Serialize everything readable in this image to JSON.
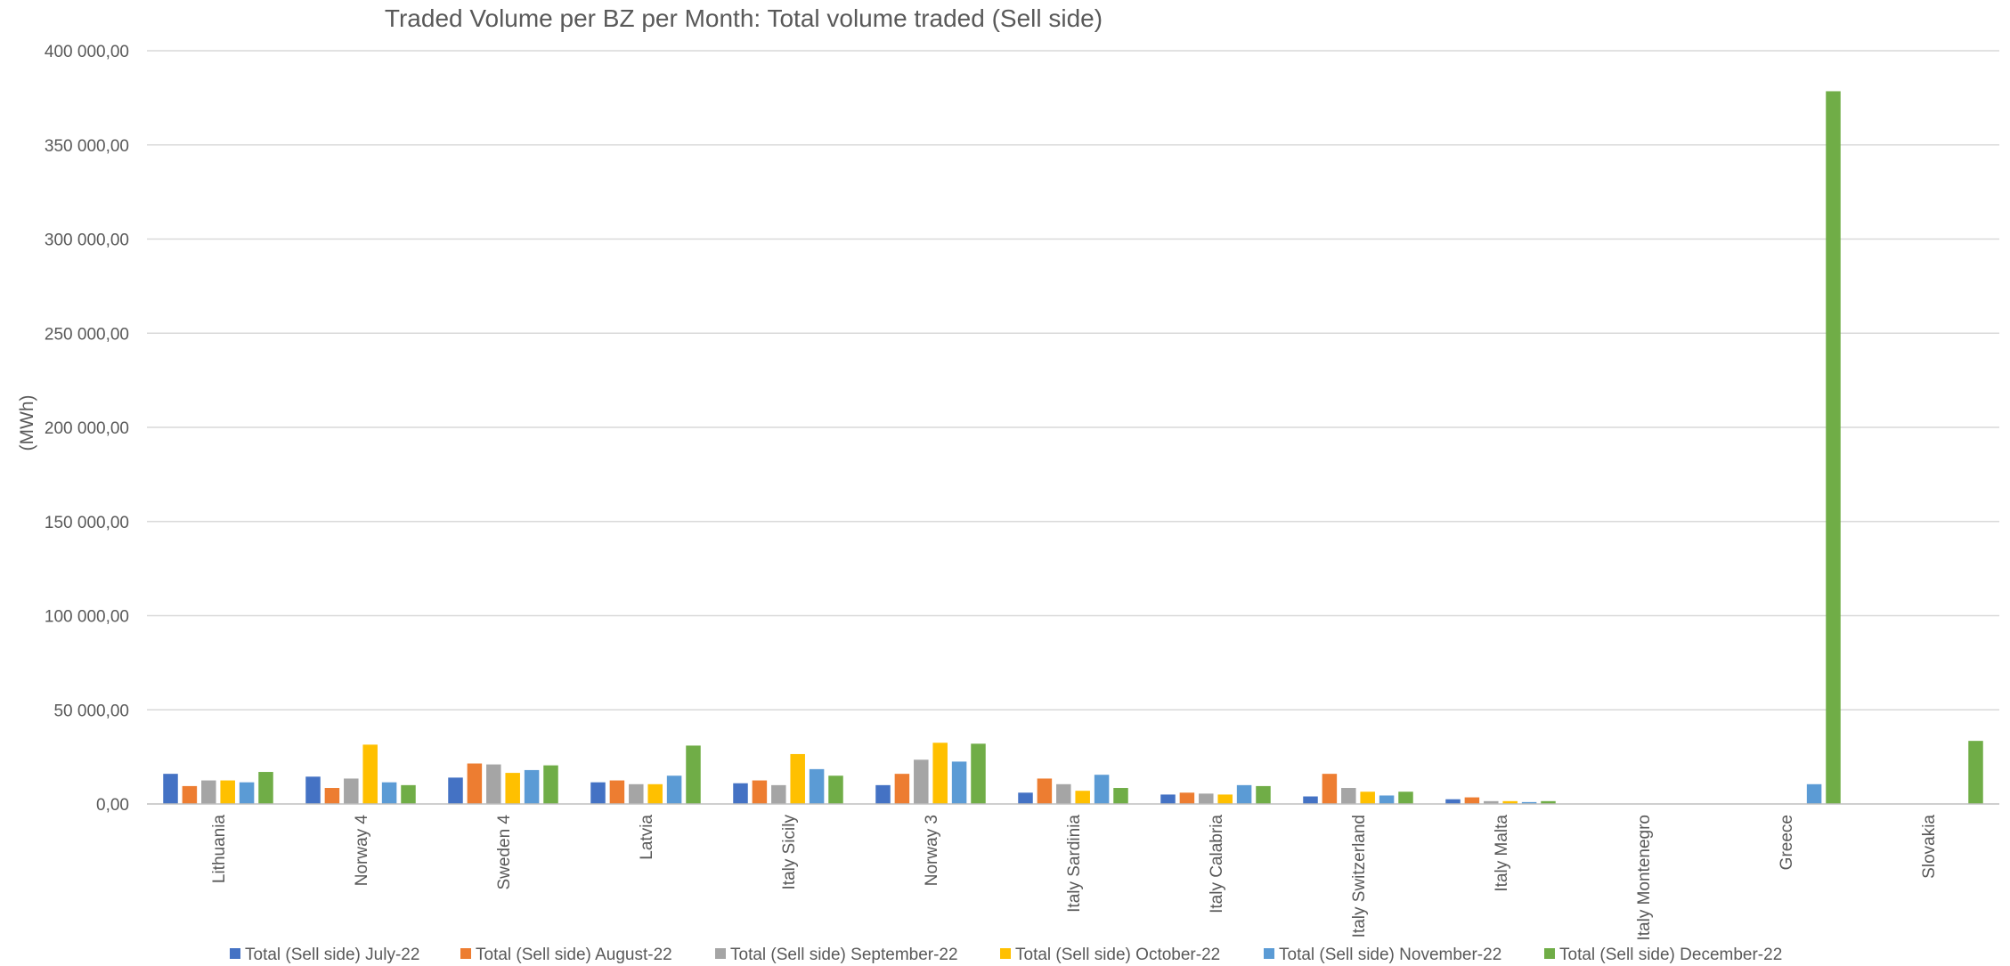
{
  "chart_data": {
    "type": "bar",
    "title": "Traded Volume per BZ per Month: Total volume traded (Sell side)",
    "ylabel": "(MWh)",
    "xlabel": "",
    "ylim": [
      0,
      400000
    ],
    "yticks": [
      0,
      50000,
      100000,
      150000,
      200000,
      250000,
      300000,
      350000,
      400000
    ],
    "ytick_labels": [
      "0,00",
      "50 000,00",
      "100 000,00",
      "150 000,00",
      "200 000,00",
      "250 000,00",
      "300 000,00",
      "350 000,00",
      "400 000,00"
    ],
    "grid": true,
    "legend_position": "bottom",
    "categories": [
      "Lithuania",
      "Norway 4",
      "Sweden 4",
      "Latvia",
      "Italy Sicily",
      "Norway 3",
      "Italy Sardinia",
      "Italy Calabria",
      "Italy Switzerland",
      "Italy Malta",
      "Italy Montenegro",
      "Greece",
      "Slovakia"
    ],
    "series": [
      {
        "name": "Total (Sell side) July-22",
        "color": "#4472c4",
        "values": [
          16000,
          14500,
          14000,
          11500,
          11000,
          10000,
          6000,
          5000,
          4000,
          2500,
          0,
          0,
          0
        ]
      },
      {
        "name": "Total (Sell side) August-22",
        "color": "#ed7d31",
        "values": [
          9500,
          8500,
          21500,
          12500,
          12500,
          16000,
          13500,
          6000,
          16000,
          3500,
          0,
          0,
          0
        ]
      },
      {
        "name": "Total (Sell side) September-22",
        "color": "#a5a5a5",
        "values": [
          12500,
          13500,
          21000,
          10500,
          10000,
          23500,
          10500,
          5500,
          8500,
          1500,
          0,
          0,
          0
        ]
      },
      {
        "name": "Total (Sell side) October-22",
        "color": "#ffc000",
        "values": [
          12500,
          31500,
          16500,
          10500,
          26500,
          32500,
          7000,
          5000,
          6500,
          1500,
          0,
          0,
          0
        ]
      },
      {
        "name": "Total (Sell side) November-22",
        "color": "#5b9bd5",
        "values": [
          11500,
          11500,
          18000,
          15000,
          18500,
          22500,
          15500,
          10000,
          4500,
          1000,
          0,
          10500,
          0
        ]
      },
      {
        "name": "Total (Sell side) December-22",
        "color": "#70ad47",
        "values": [
          17000,
          10000,
          20500,
          31000,
          15000,
          32000,
          8500,
          9500,
          6500,
          1500,
          0,
          378500,
          33500
        ]
      }
    ]
  }
}
